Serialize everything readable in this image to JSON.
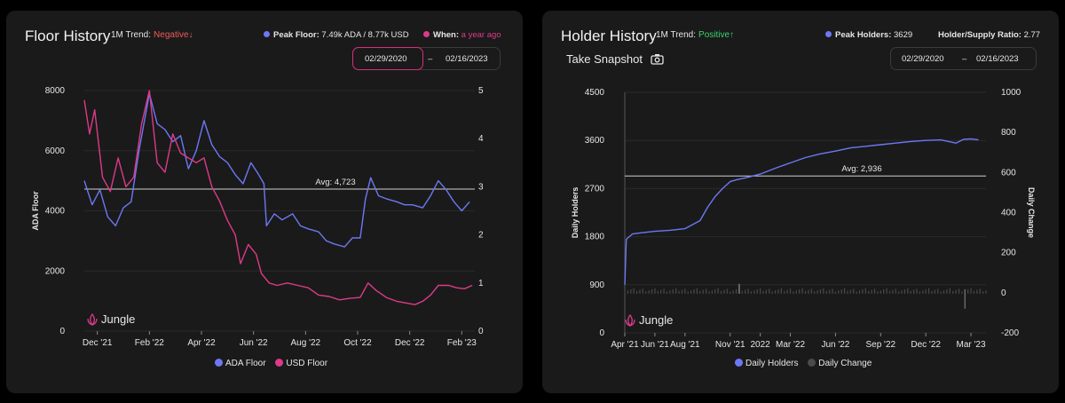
{
  "colors": {
    "ada": "#6c78f5",
    "usd": "#dd3a89",
    "negative": "#f05a5a",
    "positive": "#3cd06e",
    "pink_border": "#d52f7e",
    "change": "#4a4a4a"
  },
  "floor": {
    "title": "Floor History",
    "trend_label": "1M Trend:",
    "trend_value": "Negative↓",
    "peak_label": "Peak Floor:",
    "peak_value": "7.49k ADA / 8.77k USD",
    "when_label": "When:",
    "when_value": "a year ago",
    "date_from": "02/29/2020",
    "date_sep": "–",
    "date_to": "02/16/2023",
    "brand": "Jungle",
    "legend": [
      "ADA Floor",
      "USD Floor"
    ]
  },
  "holders": {
    "title": "Holder History",
    "trend_label": "1M Trend:",
    "trend_value": "Positive↑",
    "peak_label": "Peak Holders:",
    "peak_value": "3629",
    "ratio_label": "Holder/Supply Ratio:",
    "ratio_value": "2.77",
    "snapshot_label": "Take Snapshot",
    "date_from": "02/29/2020",
    "date_sep": "–",
    "date_to": "02/16/2023",
    "brand": "Jungle",
    "legend": [
      "Daily Holders",
      "Daily Change"
    ]
  },
  "chart_data": [
    {
      "type": "line",
      "title": "Floor History",
      "ylabel": "ADA Floor",
      "ylim": [
        0,
        8000
      ],
      "yticks": [
        "8000",
        "6000",
        "4000",
        "2000",
        "0"
      ],
      "y2lim": [
        0,
        5
      ],
      "y2ticks": [
        "5",
        "4",
        "3",
        "2",
        "1",
        "0"
      ],
      "xlim": [
        0,
        15
      ],
      "xticks": [
        {
          "x": 0.5,
          "label": "Dec '21"
        },
        {
          "x": 2.5,
          "label": "Feb '22"
        },
        {
          "x": 4.5,
          "label": "Apr '22"
        },
        {
          "x": 6.5,
          "label": "Jun '22"
        },
        {
          "x": 8.5,
          "label": "Aug '22"
        },
        {
          "x": 10.5,
          "label": "Oct '22"
        },
        {
          "x": 12.5,
          "label": "Dec '22"
        },
        {
          "x": 14.5,
          "label": "Feb '23"
        }
      ],
      "avg": 4723,
      "avg_label": "Avg: 4,723",
      "series": [
        {
          "name": "ADA Floor",
          "axis": "left",
          "points": [
            [
              0,
              5000
            ],
            [
              0.3,
              4200
            ],
            [
              0.6,
              4700
            ],
            [
              0.9,
              3800
            ],
            [
              1.2,
              3500
            ],
            [
              1.5,
              4100
            ],
            [
              1.8,
              4300
            ],
            [
              2.1,
              6000
            ],
            [
              2.5,
              7900
            ],
            [
              2.8,
              6900
            ],
            [
              3.1,
              6700
            ],
            [
              3.4,
              6300
            ],
            [
              3.7,
              6500
            ],
            [
              4.0,
              5400
            ],
            [
              4.3,
              6000
            ],
            [
              4.6,
              7000
            ],
            [
              4.9,
              6200
            ],
            [
              5.2,
              5800
            ],
            [
              5.5,
              5600
            ],
            [
              5.8,
              5200
            ],
            [
              6.1,
              4900
            ],
            [
              6.4,
              5600
            ],
            [
              6.7,
              5200
            ],
            [
              6.9,
              4900
            ],
            [
              7.0,
              3500
            ],
            [
              7.3,
              3900
            ],
            [
              7.6,
              3700
            ],
            [
              8.0,
              3900
            ],
            [
              8.3,
              3500
            ],
            [
              8.6,
              3400
            ],
            [
              9.0,
              3300
            ],
            [
              9.3,
              3000
            ],
            [
              9.6,
              2900
            ],
            [
              10.0,
              2800
            ],
            [
              10.3,
              3100
            ],
            [
              10.6,
              3100
            ],
            [
              10.8,
              4400
            ],
            [
              11.0,
              5100
            ],
            [
              11.3,
              4500
            ],
            [
              11.6,
              4400
            ],
            [
              12.0,
              4300
            ],
            [
              12.3,
              4200
            ],
            [
              12.6,
              4200
            ],
            [
              13.0,
              4100
            ],
            [
              13.3,
              4500
            ],
            [
              13.6,
              5000
            ],
            [
              13.9,
              4700
            ],
            [
              14.2,
              4300
            ],
            [
              14.5,
              4000
            ],
            [
              14.8,
              4300
            ]
          ]
        },
        {
          "name": "USD Floor",
          "axis": "right",
          "points": [
            [
              0,
              4.8
            ],
            [
              0.2,
              4.1
            ],
            [
              0.4,
              4.6
            ],
            [
              0.7,
              3.2
            ],
            [
              1.0,
              2.9
            ],
            [
              1.3,
              3.6
            ],
            [
              1.6,
              3.0
            ],
            [
              1.9,
              3.2
            ],
            [
              2.2,
              4.3
            ],
            [
              2.5,
              5.0
            ],
            [
              2.8,
              3.5
            ],
            [
              3.1,
              3.3
            ],
            [
              3.4,
              4.1
            ],
            [
              3.7,
              3.7
            ],
            [
              4.0,
              3.6
            ],
            [
              4.3,
              3.5
            ],
            [
              4.6,
              3.6
            ],
            [
              4.9,
              3.0
            ],
            [
              5.2,
              2.7
            ],
            [
              5.5,
              2.3
            ],
            [
              5.8,
              2.0
            ],
            [
              6.0,
              1.4
            ],
            [
              6.3,
              1.8
            ],
            [
              6.6,
              1.6
            ],
            [
              6.8,
              1.2
            ],
            [
              7.1,
              1.0
            ],
            [
              7.4,
              0.95
            ],
            [
              7.8,
              1.0
            ],
            [
              8.2,
              0.95
            ],
            [
              8.6,
              0.9
            ],
            [
              9.0,
              0.75
            ],
            [
              9.4,
              0.72
            ],
            [
              9.8,
              0.65
            ],
            [
              10.2,
              0.68
            ],
            [
              10.6,
              0.7
            ],
            [
              10.9,
              1.0
            ],
            [
              11.2,
              0.85
            ],
            [
              11.6,
              0.7
            ],
            [
              12.0,
              0.62
            ],
            [
              12.4,
              0.58
            ],
            [
              12.7,
              0.55
            ],
            [
              13.0,
              0.62
            ],
            [
              13.3,
              0.75
            ],
            [
              13.6,
              0.95
            ],
            [
              14.0,
              0.95
            ],
            [
              14.3,
              0.9
            ],
            [
              14.6,
              0.88
            ],
            [
              14.9,
              0.95
            ]
          ]
        }
      ]
    },
    {
      "type": "line",
      "title": "Holder History",
      "ylabel": "Daily Holders",
      "y2label": "Daily Change",
      "ylim": [
        0,
        4500
      ],
      "yticks": [
        "4500",
        "3600",
        "2700",
        "1800",
        "900",
        "0"
      ],
      "y2lim": [
        -200,
        1000
      ],
      "y2ticks": [
        "1000",
        "800",
        "600",
        "400",
        "200",
        "0",
        "-200"
      ],
      "xlim": [
        0,
        24
      ],
      "xticks": [
        {
          "x": 0,
          "label": "Apr '21"
        },
        {
          "x": 2,
          "label": "Jun '21"
        },
        {
          "x": 4,
          "label": "Aug '21"
        },
        {
          "x": 7,
          "label": "Nov '21"
        },
        {
          "x": 9,
          "label": "2022"
        },
        {
          "x": 11,
          "label": "Mar '22"
        },
        {
          "x": 14,
          "label": "Jun '22"
        },
        {
          "x": 17,
          "label": "Sep '22"
        },
        {
          "x": 20,
          "label": "Dec '22"
        },
        {
          "x": 23,
          "label": "Mar '23"
        }
      ],
      "avg": 2936,
      "avg_label": "Avg: 2,936",
      "series": [
        {
          "name": "Daily Holders",
          "axis": "left",
          "points": [
            [
              0,
              900
            ],
            [
              0.1,
              1750
            ],
            [
              0.5,
              1850
            ],
            [
              1,
              1870
            ],
            [
              2,
              1900
            ],
            [
              3,
              1920
            ],
            [
              4,
              1950
            ],
            [
              5,
              2100
            ],
            [
              5.5,
              2350
            ],
            [
              6,
              2550
            ],
            [
              6.5,
              2700
            ],
            [
              7,
              2830
            ],
            [
              7.5,
              2870
            ],
            [
              8,
              2900
            ],
            [
              9,
              2970
            ],
            [
              10,
              3080
            ],
            [
              11,
              3180
            ],
            [
              12,
              3280
            ],
            [
              13,
              3350
            ],
            [
              14,
              3400
            ],
            [
              15,
              3460
            ],
            [
              16,
              3490
            ],
            [
              17,
              3520
            ],
            [
              18,
              3550
            ],
            [
              19,
              3580
            ],
            [
              20,
              3600
            ],
            [
              21,
              3610
            ],
            [
              22,
              3550
            ],
            [
              22.5,
              3620
            ],
            [
              23,
              3629
            ],
            [
              23.5,
              3610
            ]
          ]
        },
        {
          "name": "Daily Change",
          "axis": "right",
          "points": [
            [
              0,
              0
            ],
            [
              24,
              0
            ]
          ]
        }
      ]
    }
  ]
}
